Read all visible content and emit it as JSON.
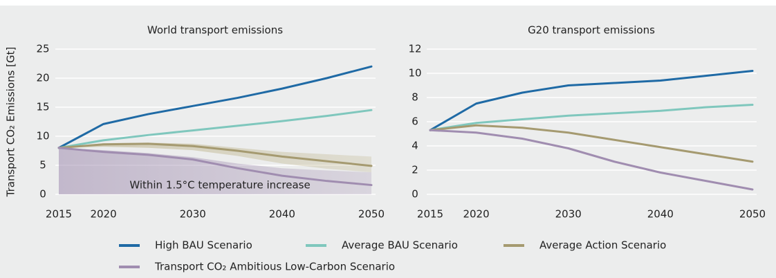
{
  "chart_data": [
    {
      "type": "line",
      "title": "World transport emissions",
      "ylabel": "Transport CO₂ Emissions [Gt]",
      "x": [
        2015,
        2020,
        2025,
        2030,
        2035,
        2040,
        2045,
        2050
      ],
      "xlim": [
        2015,
        2050
      ],
      "xticks": [
        2015,
        2020,
        2030,
        2040,
        2050
      ],
      "ylim": [
        0,
        25
      ],
      "yticks": [
        0,
        5,
        10,
        15,
        20,
        25
      ],
      "grid": true,
      "annotation": "Within 1.5°C temperature increase",
      "areas": [
        {
          "color": "#a08db0",
          "lower": [
            0,
            0,
            0,
            0,
            0,
            0,
            0,
            0
          ],
          "upper": [
            8,
            7.6,
            7.1,
            6.4,
            5.3,
            4.5,
            4.1,
            3.8
          ]
        },
        {
          "color": "#b8ad80",
          "lower": [
            8,
            8.2,
            8.0,
            7.6,
            6.6,
            5.3,
            4.4,
            3.8
          ],
          "upper": [
            8,
            8.8,
            8.9,
            8.7,
            8.0,
            7.3,
            6.9,
            6.5
          ]
        }
      ],
      "series": [
        {
          "name": "High BAU Scenario",
          "color": "#1f6aa5",
          "values": [
            8,
            12.1,
            13.8,
            15.2,
            16.6,
            18.2,
            20.0,
            22.0
          ]
        },
        {
          "name": "Average BAU Scenario",
          "color": "#7fc7bd",
          "values": [
            8,
            9.3,
            10.2,
            11.0,
            11.8,
            12.6,
            13.5,
            14.5
          ]
        },
        {
          "name": "Average Action Scenario",
          "color": "#a59a70",
          "values": [
            8,
            8.6,
            8.7,
            8.3,
            7.5,
            6.5,
            5.7,
            4.9
          ]
        },
        {
          "name": "Transport CO₂ Ambitious Low-Carbon Scenario",
          "color": "#a08db0",
          "values": [
            8,
            7.3,
            6.8,
            6.0,
            4.5,
            3.2,
            2.3,
            1.6
          ]
        }
      ]
    },
    {
      "type": "line",
      "title": "G20 transport emissions",
      "x": [
        2015,
        2020,
        2025,
        2030,
        2035,
        2040,
        2045,
        2050
      ],
      "xlim": [
        2015,
        2050
      ],
      "xticks": [
        2015,
        2020,
        2030,
        2040,
        2050
      ],
      "ylim": [
        0,
        12
      ],
      "yticks": [
        0,
        2,
        4,
        6,
        8,
        10,
        12
      ],
      "grid": true,
      "series": [
        {
          "color": "#1f6aa5",
          "values": [
            5.3,
            7.5,
            8.4,
            9.0,
            9.2,
            9.4,
            9.8,
            10.2
          ]
        },
        {
          "color": "#7fc7bd",
          "values": [
            5.3,
            5.9,
            6.2,
            6.5,
            6.7,
            6.9,
            7.2,
            7.4
          ]
        },
        {
          "color": "#a59a70",
          "values": [
            5.3,
            5.7,
            5.5,
            5.1,
            4.5,
            3.9,
            3.3,
            2.7
          ]
        },
        {
          "color": "#a08db0",
          "values": [
            5.3,
            5.1,
            4.6,
            3.8,
            2.7,
            1.8,
            1.1,
            0.4
          ]
        }
      ]
    }
  ]
}
